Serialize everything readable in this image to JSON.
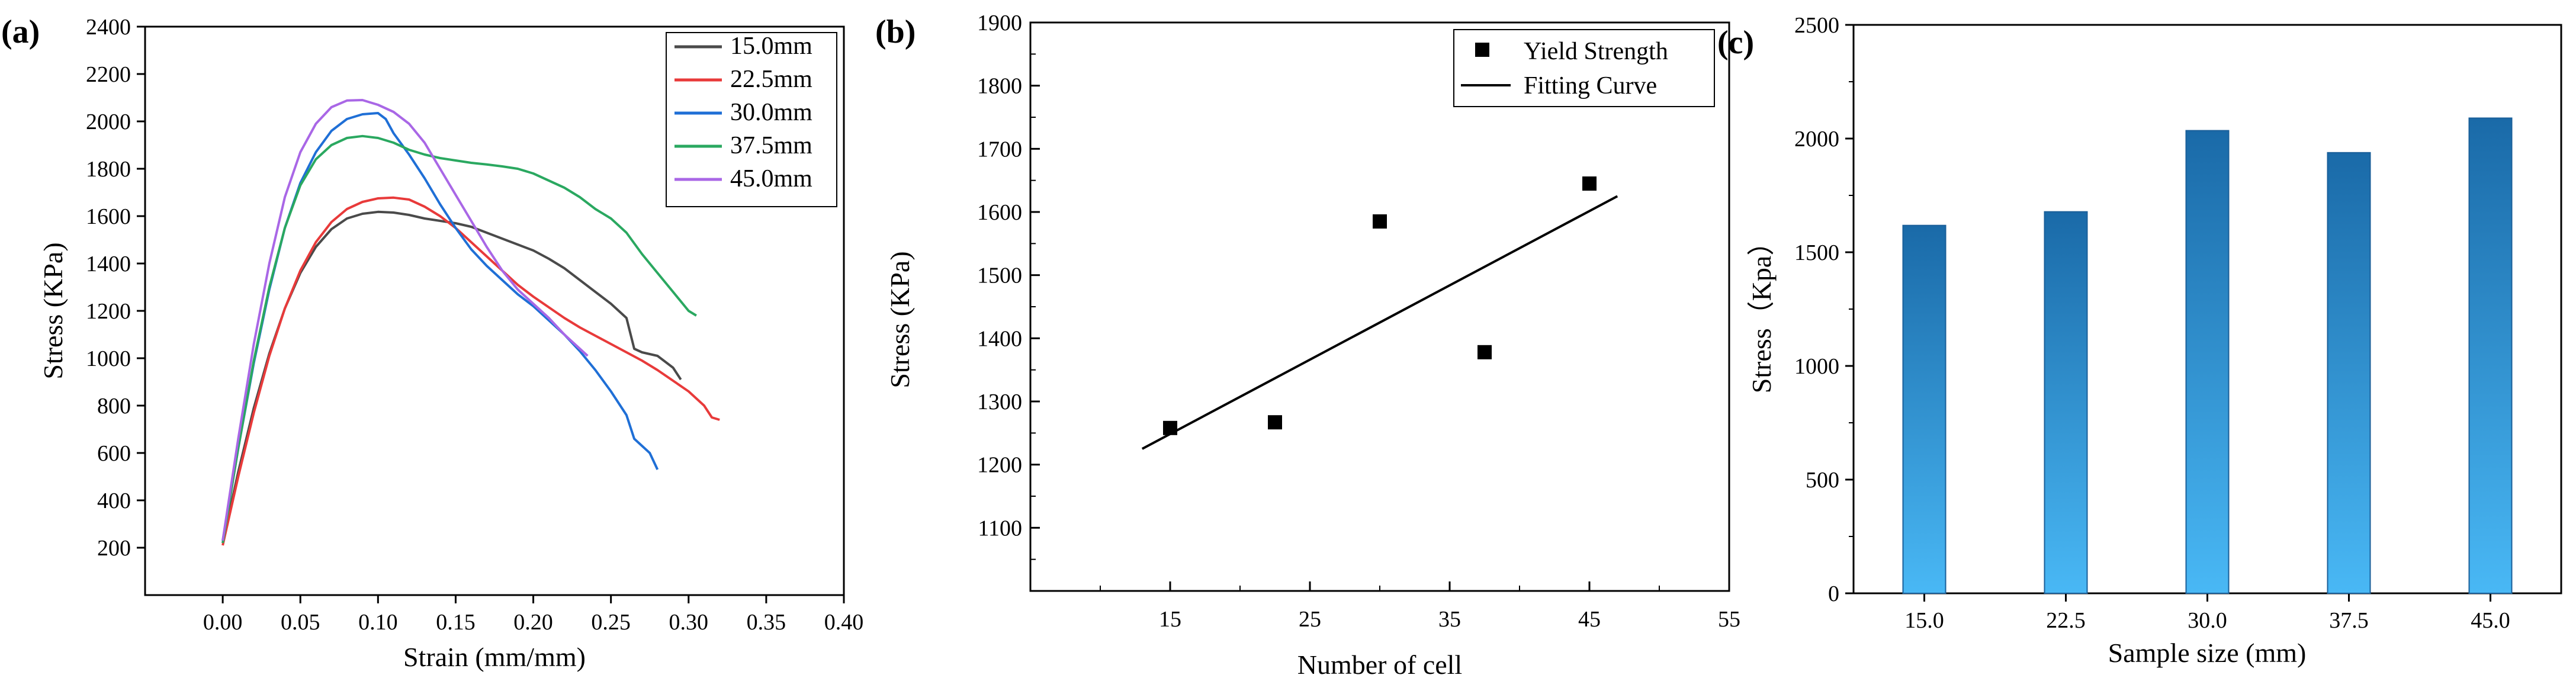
{
  "panels": {
    "a": "(a)",
    "b": "(b)",
    "c": "(c)"
  },
  "chart_data": [
    {
      "type": "line",
      "panel": "(a)",
      "xlabel": "Strain (mm/mm)",
      "ylabel": "Stress (KPa)",
      "xlim": [
        -0.05,
        0.4
      ],
      "ylim": [
        0,
        2400
      ],
      "xticks": [
        0.0,
        0.05,
        0.1,
        0.15,
        0.2,
        0.25,
        0.3,
        0.35,
        0.4
      ],
      "xtick_labels": [
        "0.00",
        "0.05",
        "0.10",
        "0.15",
        "0.20",
        "0.25",
        "0.30",
        "0.35",
        "0.40"
      ],
      "yticks": [
        200,
        400,
        600,
        800,
        1000,
        1200,
        1400,
        1600,
        1800,
        2000,
        2200,
        2400
      ],
      "ytick_labels": [
        "200",
        "400",
        "600",
        "800",
        "1000",
        "1200",
        "1400",
        "1600",
        "1800",
        "2000",
        "2200",
        "2400"
      ],
      "legend_position": "top-right",
      "series": [
        {
          "name": "15.0mm",
          "color": "#4a4a4a",
          "points": [
            [
              0.0,
              220
            ],
            [
              0.01,
              520
            ],
            [
              0.02,
              790
            ],
            [
              0.03,
              1020
            ],
            [
              0.04,
              1210
            ],
            [
              0.05,
              1360
            ],
            [
              0.06,
              1470
            ],
            [
              0.07,
              1545
            ],
            [
              0.08,
              1590
            ],
            [
              0.09,
              1610
            ],
            [
              0.1,
              1618
            ],
            [
              0.11,
              1615
            ],
            [
              0.12,
              1605
            ],
            [
              0.13,
              1590
            ],
            [
              0.14,
              1580
            ],
            [
              0.15,
              1570
            ],
            [
              0.16,
              1555
            ],
            [
              0.17,
              1530
            ],
            [
              0.18,
              1505
            ],
            [
              0.19,
              1480
            ],
            [
              0.2,
              1455
            ],
            [
              0.21,
              1420
            ],
            [
              0.22,
              1380
            ],
            [
              0.23,
              1330
            ],
            [
              0.24,
              1280
            ],
            [
              0.25,
              1230
            ],
            [
              0.26,
              1170
            ],
            [
              0.265,
              1040
            ],
            [
              0.27,
              1025
            ],
            [
              0.28,
              1010
            ],
            [
              0.29,
              960
            ],
            [
              0.295,
              910
            ]
          ]
        },
        {
          "name": "22.5mm",
          "color": "#e83a3a",
          "points": [
            [
              0.0,
              210
            ],
            [
              0.01,
              500
            ],
            [
              0.02,
              770
            ],
            [
              0.03,
              1010
            ],
            [
              0.04,
              1210
            ],
            [
              0.05,
              1370
            ],
            [
              0.06,
              1490
            ],
            [
              0.07,
              1575
            ],
            [
              0.08,
              1630
            ],
            [
              0.09,
              1660
            ],
            [
              0.1,
              1675
            ],
            [
              0.11,
              1678
            ],
            [
              0.12,
              1670
            ],
            [
              0.13,
              1640
            ],
            [
              0.14,
              1600
            ],
            [
              0.15,
              1550
            ],
            [
              0.16,
              1490
            ],
            [
              0.17,
              1430
            ],
            [
              0.18,
              1370
            ],
            [
              0.19,
              1310
            ],
            [
              0.2,
              1260
            ],
            [
              0.21,
              1215
            ],
            [
              0.22,
              1170
            ],
            [
              0.23,
              1130
            ],
            [
              0.24,
              1095
            ],
            [
              0.25,
              1060
            ],
            [
              0.26,
              1025
            ],
            [
              0.27,
              990
            ],
            [
              0.28,
              950
            ],
            [
              0.29,
              905
            ],
            [
              0.3,
              860
            ],
            [
              0.31,
              800
            ],
            [
              0.315,
              750
            ],
            [
              0.32,
              740
            ]
          ]
        },
        {
          "name": "30.0mm",
          "color": "#1f6fd6",
          "points": [
            [
              0.0,
              230
            ],
            [
              0.01,
              620
            ],
            [
              0.02,
              980
            ],
            [
              0.03,
              1290
            ],
            [
              0.04,
              1550
            ],
            [
              0.05,
              1740
            ],
            [
              0.06,
              1870
            ],
            [
              0.07,
              1960
            ],
            [
              0.08,
              2010
            ],
            [
              0.09,
              2030
            ],
            [
              0.1,
              2035
            ],
            [
              0.105,
              2010
            ],
            [
              0.11,
              1950
            ],
            [
              0.12,
              1860
            ],
            [
              0.13,
              1760
            ],
            [
              0.14,
              1650
            ],
            [
              0.15,
              1550
            ],
            [
              0.16,
              1460
            ],
            [
              0.17,
              1390
            ],
            [
              0.18,
              1330
            ],
            [
              0.19,
              1270
            ],
            [
              0.2,
              1220
            ],
            [
              0.21,
              1160
            ],
            [
              0.22,
              1100
            ],
            [
              0.23,
              1030
            ],
            [
              0.24,
              950
            ],
            [
              0.25,
              860
            ],
            [
              0.26,
              760
            ],
            [
              0.265,
              660
            ],
            [
              0.27,
              630
            ],
            [
              0.275,
              600
            ],
            [
              0.28,
              530
            ]
          ]
        },
        {
          "name": "37.5mm",
          "color": "#2aa860",
          "points": [
            [
              0.0,
              220
            ],
            [
              0.01,
              620
            ],
            [
              0.02,
              990
            ],
            [
              0.03,
              1300
            ],
            [
              0.04,
              1550
            ],
            [
              0.05,
              1730
            ],
            [
              0.06,
              1840
            ],
            [
              0.07,
              1900
            ],
            [
              0.08,
              1930
            ],
            [
              0.09,
              1938
            ],
            [
              0.1,
              1930
            ],
            [
              0.11,
              1910
            ],
            [
              0.12,
              1880
            ],
            [
              0.13,
              1860
            ],
            [
              0.14,
              1845
            ],
            [
              0.15,
              1835
            ],
            [
              0.16,
              1825
            ],
            [
              0.17,
              1818
            ],
            [
              0.18,
              1810
            ],
            [
              0.19,
              1800
            ],
            [
              0.2,
              1780
            ],
            [
              0.21,
              1750
            ],
            [
              0.22,
              1720
            ],
            [
              0.23,
              1680
            ],
            [
              0.24,
              1630
            ],
            [
              0.25,
              1590
            ],
            [
              0.26,
              1530
            ],
            [
              0.27,
              1440
            ],
            [
              0.28,
              1360
            ],
            [
              0.29,
              1280
            ],
            [
              0.3,
              1200
            ],
            [
              0.305,
              1180
            ]
          ]
        },
        {
          "name": "45.0mm",
          "color": "#a967e6",
          "points": [
            [
              0.0,
              230
            ],
            [
              0.01,
              660
            ],
            [
              0.02,
              1060
            ],
            [
              0.03,
              1400
            ],
            [
              0.04,
              1680
            ],
            [
              0.05,
              1870
            ],
            [
              0.06,
              1990
            ],
            [
              0.07,
              2060
            ],
            [
              0.08,
              2088
            ],
            [
              0.09,
              2090
            ],
            [
              0.1,
              2070
            ],
            [
              0.11,
              2040
            ],
            [
              0.12,
              1990
            ],
            [
              0.13,
              1910
            ],
            [
              0.14,
              1800
            ],
            [
              0.15,
              1690
            ],
            [
              0.16,
              1580
            ],
            [
              0.17,
              1470
            ],
            [
              0.18,
              1370
            ],
            [
              0.19,
              1290
            ],
            [
              0.2,
              1230
            ],
            [
              0.21,
              1170
            ],
            [
              0.22,
              1100
            ],
            [
              0.23,
              1040
            ],
            [
              0.235,
              1010
            ]
          ]
        }
      ]
    },
    {
      "type": "scatter",
      "panel": "(b)",
      "xlabel": "Number of cell",
      "ylabel": "Stress (KPa)",
      "xlim": [
        5,
        55
      ],
      "ylim": [
        1000,
        1900
      ],
      "xticks": [
        15,
        25,
        35,
        45,
        55
      ],
      "xtick_labels": [
        "15",
        "25",
        "35",
        "45",
        "55"
      ],
      "yticks": [
        1100,
        1200,
        1300,
        1400,
        1500,
        1600,
        1700,
        1800,
        1900
      ],
      "ytick_labels": [
        "1100",
        "1200",
        "1300",
        "1400",
        "1500",
        "1600",
        "1700",
        "1800",
        "1900"
      ],
      "legend_position": "top-right",
      "series": [
        {
          "name": "Yield Strength",
          "marker": "square",
          "color": "#000000",
          "x": [
            15,
            22.5,
            30,
            37.5,
            45
          ],
          "y": [
            1258,
            1267,
            1585,
            1378,
            1645
          ]
        },
        {
          "name": "Fitting Curve",
          "color": "#000000",
          "x": [
            13,
            47
          ],
          "y": [
            1225,
            1625
          ]
        }
      ]
    },
    {
      "type": "bar",
      "panel": "(c)",
      "xlabel": "Sample size (mm)",
      "ylabel": "Stress（Kpa）",
      "categories": [
        "15.0",
        "22.5",
        "30.0",
        "37.5",
        "45.0"
      ],
      "values": [
        1618,
        1678,
        2035,
        1938,
        2090
      ],
      "ylim": [
        0,
        2500
      ],
      "yticks": [
        0,
        500,
        1000,
        1500,
        2000,
        2500
      ],
      "ytick_labels": [
        "0",
        "500",
        "1000",
        "1500",
        "2000",
        "2500"
      ],
      "bar_color_top": "#1a6aa8",
      "bar_color_bottom": "#49b8f5"
    }
  ]
}
